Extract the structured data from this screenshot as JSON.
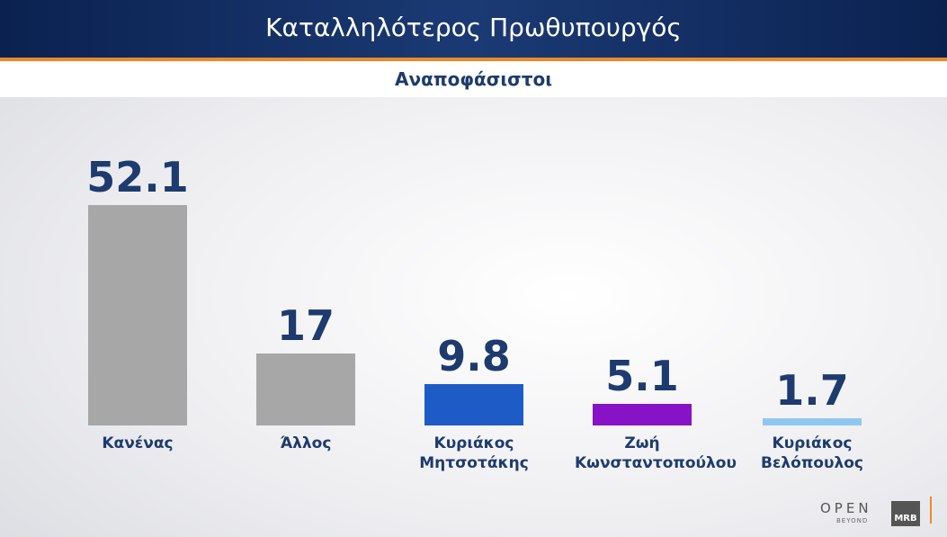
{
  "chart_data": {
    "type": "bar",
    "title": "Καταλληλότερος Πρωθυπουργός",
    "subtitle": "Αναποφάσιστοι",
    "categories": [
      "Κανένας",
      "Άλλος",
      "Κυριάκος Μητσοτάκης",
      "Ζωή Κωνσταντοπούλου",
      "Κυριάκος Βελόπουλος"
    ],
    "values": [
      52.1,
      17,
      9.8,
      5.1,
      1.7
    ],
    "colors": [
      "#a7a7a7",
      "#a7a7a7",
      "#1f5bc6",
      "#8712c6",
      "#8fc8ee"
    ]
  },
  "watermark": {
    "brand": "OPEN",
    "tagline": "BEYOND",
    "pollster": "MRB"
  }
}
